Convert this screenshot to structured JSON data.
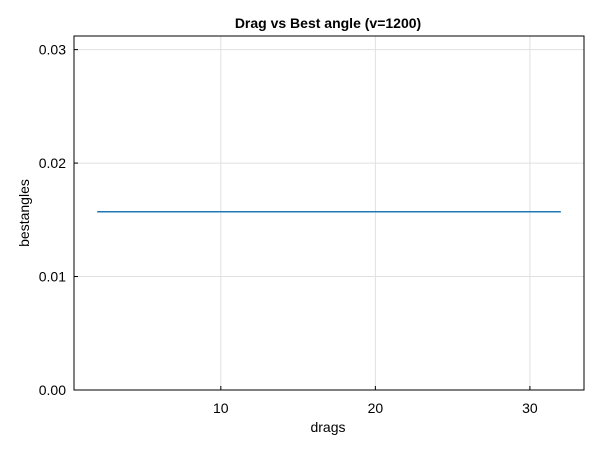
{
  "chart_data": {
    "type": "line",
    "title": "Drag vs Best angle (v=1200)",
    "xlabel": "drags",
    "ylabel": "bestangles",
    "xlim": [
      0.5,
      33.5
    ],
    "ylim": [
      0,
      0.0312
    ],
    "x_ticks": [
      10,
      20,
      30
    ],
    "x_tick_labels": [
      "10",
      "20",
      "30"
    ],
    "y_ticks": [
      0,
      0.01,
      0.02,
      0.03
    ],
    "y_tick_labels": [
      "0.00",
      "0.01",
      "0.02",
      "0.03"
    ],
    "grid": true,
    "legend": "none",
    "series": [
      {
        "color": "#1f77b4",
        "x": [
          2,
          32
        ],
        "y": [
          0.01571,
          0.01571
        ]
      }
    ]
  }
}
